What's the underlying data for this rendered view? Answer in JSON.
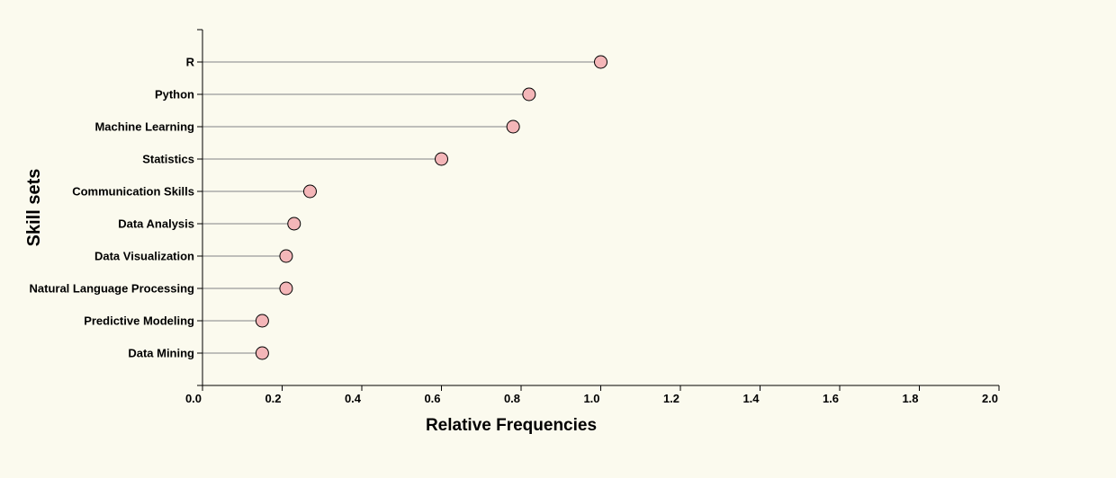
{
  "chart_data": {
    "type": "lollipop",
    "xlabel": "Relative Frequencies",
    "ylabel": "Skill sets",
    "xlim": [
      0,
      2.0
    ],
    "xticks": [
      "0.0",
      "0.2",
      "0.4",
      "0.6",
      "0.8",
      "1.0",
      "1.2",
      "1.4",
      "1.6",
      "1.8",
      "2.0"
    ],
    "categories": [
      "R",
      "Python",
      "Machine Learning",
      "Statistics",
      "Communication Skills",
      "Data Analysis",
      "Data Visualization",
      "Natural Language Processing",
      "Predictive Modeling",
      "Data Mining"
    ],
    "values": [
      1.0,
      0.82,
      0.78,
      0.6,
      0.27,
      0.23,
      0.21,
      0.21,
      0.15,
      0.15
    ],
    "grid": false,
    "colors": {
      "marker_fill": "#f4b6b8",
      "marker_stroke": "#000000",
      "stem": "#a9a9a9",
      "background": "#fbfaee"
    }
  }
}
